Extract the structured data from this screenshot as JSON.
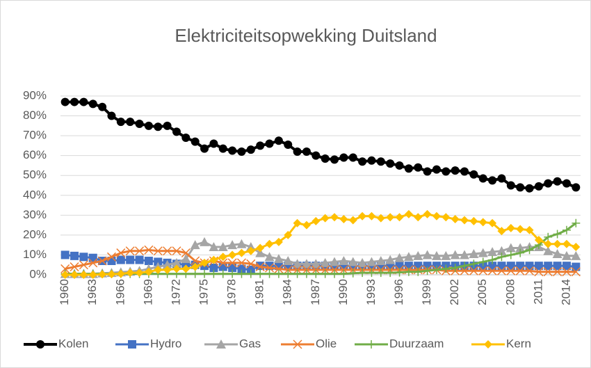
{
  "chart_data": {
    "type": "line",
    "title": "Elektriciteitsopwekking Duitsland",
    "categories": [
      "1960",
      null,
      null,
      "1963",
      null,
      null,
      "1966",
      null,
      null,
      "1969",
      null,
      null,
      "1972",
      null,
      null,
      "1975",
      null,
      null,
      "1978",
      null,
      null,
      "1981",
      null,
      null,
      "1984",
      null,
      null,
      "1987",
      null,
      null,
      "1990",
      null,
      null,
      "1993",
      null,
      null,
      "1996",
      null,
      null,
      "1999",
      null,
      null,
      "2002",
      null,
      null,
      "2005",
      null,
      null,
      "2008",
      null,
      null,
      "2011",
      null,
      null,
      "2014",
      null
    ],
    "series": [
      {
        "name": "Kolen",
        "color": "#000000",
        "marker": "circle",
        "values": [
          87,
          87,
          87,
          86,
          84.5,
          80,
          77,
          77,
          76,
          75,
          74.5,
          75,
          72,
          69,
          67,
          63.5,
          66,
          63.5,
          62.5,
          62,
          63,
          65,
          66,
          67.5,
          65.5,
          62,
          62,
          60,
          58.5,
          58,
          59,
          59,
          57,
          57.5,
          57,
          56,
          55,
          53.5,
          54,
          52,
          53,
          52,
          52.5,
          52,
          50.5,
          48.5,
          47.5,
          48.5,
          45,
          44,
          43.5,
          44.5,
          46,
          47,
          46,
          44
        ]
      },
      {
        "name": "Hydro",
        "color": "#4472c4",
        "marker": "square",
        "values": [
          10,
          9.5,
          9,
          8.5,
          7,
          7,
          7.5,
          7.5,
          7.5,
          7,
          6.5,
          6,
          5.5,
          5,
          5,
          4.5,
          3.5,
          4,
          3.5,
          3,
          2.5,
          4.5,
          4.5,
          4.5,
          4.5,
          4.5,
          4.5,
          4.5,
          4.5,
          4.5,
          4.5,
          4.5,
          4.5,
          4.5,
          4.5,
          4.5,
          4.5,
          4.5,
          4.5,
          4.5,
          4.5,
          4.5,
          4.5,
          4.5,
          4.5,
          4.5,
          4.5,
          4.5,
          4.5,
          4.5,
          4.5,
          4.5,
          4.5,
          4.5,
          4.5,
          4
        ]
      },
      {
        "name": "Gas",
        "color": "#a5a5a5",
        "marker": "triangle",
        "values": [
          0.5,
          0.5,
          0.5,
          0.5,
          0.8,
          1,
          1.3,
          1.6,
          2,
          3,
          4,
          5,
          6,
          8,
          15,
          16.5,
          14,
          14,
          15,
          15.5,
          14,
          11,
          9,
          8,
          7,
          5.5,
          5.5,
          5.5,
          6,
          6.5,
          7,
          6.5,
          6,
          6.5,
          7,
          7.5,
          8.5,
          9,
          9.5,
          10,
          9.5,
          9.5,
          10,
          10,
          10.5,
          11,
          11.5,
          12,
          13.5,
          13.5,
          14,
          14,
          12,
          10.5,
          9.5,
          9.5
        ]
      },
      {
        "name": "Olie",
        "color": "#ed7d31",
        "marker": "x",
        "values": [
          3,
          4,
          5,
          6,
          7,
          9,
          11,
          12,
          12,
          12.5,
          12,
          12,
          12,
          11,
          7,
          6,
          7,
          6,
          6,
          6,
          5.5,
          4,
          3.5,
          3,
          2.5,
          2.5,
          2.5,
          2.5,
          2.5,
          2.5,
          2.5,
          2.5,
          2.5,
          2.5,
          2.5,
          2.5,
          2.5,
          2.5,
          2.5,
          2.5,
          2.5,
          2,
          2,
          2,
          2,
          2,
          2,
          2,
          2,
          2,
          2,
          1.5,
          1.5,
          1.5,
          1.5,
          1.5
        ]
      },
      {
        "name": "Duurzaam",
        "color": "#70ad47",
        "marker": "plus",
        "values": [
          0.5,
          0.5,
          0.5,
          0.5,
          0.5,
          0.5,
          0.5,
          0.5,
          0.5,
          0.5,
          0.5,
          0.5,
          0.5,
          0.5,
          0.5,
          0.5,
          0.5,
          0.5,
          0.5,
          0.5,
          0.5,
          0.5,
          0.5,
          0.5,
          0.5,
          0.5,
          0.5,
          0.5,
          0.5,
          0.5,
          0.5,
          0.8,
          1,
          1,
          1,
          1,
          1.2,
          1.5,
          1.5,
          2,
          2.5,
          3,
          3.5,
          4.5,
          5.5,
          6.5,
          7.5,
          9,
          10,
          11,
          12.5,
          15,
          19,
          20.5,
          22.5,
          26
        ]
      },
      {
        "name": "Kern",
        "color": "#ffc000",
        "marker": "diamond",
        "values": [
          0,
          0,
          0,
          0,
          0.2,
          0.3,
          0.5,
          1,
          1,
          1.5,
          2.5,
          2.5,
          3,
          3,
          4,
          6,
          7.5,
          9,
          10,
          11,
          12,
          13.5,
          15.5,
          16.5,
          20,
          26,
          25,
          27,
          28.5,
          29,
          28,
          27.5,
          29.5,
          29.5,
          28.5,
          29,
          29,
          30.5,
          29,
          30.5,
          29.5,
          29,
          28,
          27.5,
          27,
          26.5,
          26,
          22,
          23.5,
          23,
          22.5,
          17.5,
          15.5,
          15.5,
          15.5,
          14
        ]
      }
    ],
    "ylim": [
      0,
      90
    ],
    "yticks": [
      {
        "value": 0,
        "label": "0%"
      },
      {
        "value": 10,
        "label": "10%"
      },
      {
        "value": 20,
        "label": "20%"
      },
      {
        "value": 30,
        "label": "30%"
      },
      {
        "value": 40,
        "label": "40%"
      },
      {
        "value": 50,
        "label": "50%"
      },
      {
        "value": 60,
        "label": "60%"
      },
      {
        "value": 70,
        "label": "70%"
      },
      {
        "value": 80,
        "label": "80%"
      },
      {
        "value": 90,
        "label": "90%"
      }
    ],
    "grid": true,
    "legend": "bottom"
  }
}
